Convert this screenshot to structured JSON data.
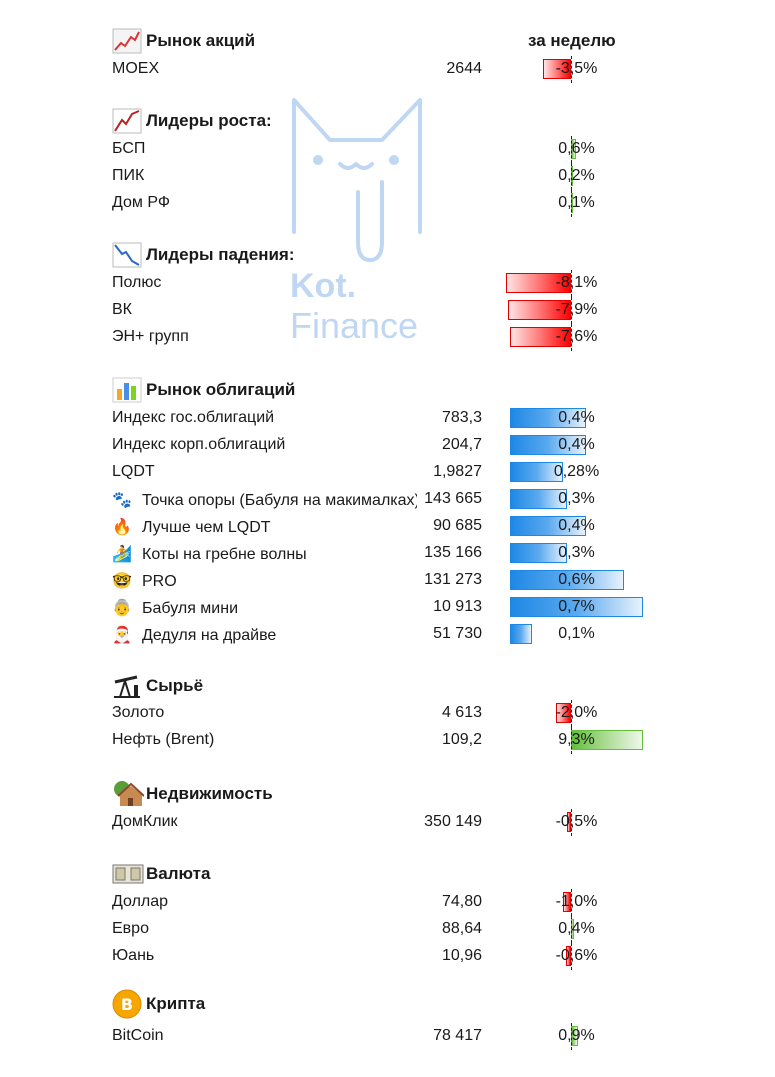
{
  "header": {
    "period_label": "за неделю"
  },
  "sections": {
    "stocks": {
      "title": "Рынок акций",
      "icon": "chart-up-icon",
      "rows": [
        {
          "name": "MOEX",
          "value": "2644",
          "pct": "-3,5%"
        }
      ]
    },
    "leaders_up": {
      "title": "Лидеры роста:",
      "icon": "trend-up-icon",
      "rows": [
        {
          "name": "БСП",
          "value": "",
          "pct": "0,6%"
        },
        {
          "name": "ПИК",
          "value": "",
          "pct": "0,2%"
        },
        {
          "name": "Дом РФ",
          "value": "",
          "pct": "0,1%"
        }
      ]
    },
    "leaders_down": {
      "title": "Лидеры падения:",
      "icon": "trend-down-icon",
      "rows": [
        {
          "name": "Полюс",
          "value": "",
          "pct": "-8,1%"
        },
        {
          "name": "ВК",
          "value": "",
          "pct": "-7,9%"
        },
        {
          "name": "ЭН+ групп",
          "value": "",
          "pct": "-7,6%"
        }
      ]
    },
    "bonds": {
      "title": "Рынок облигаций",
      "icon": "bar-chart-icon",
      "rows": [
        {
          "name": "Индекс гос.облигаций",
          "value": "783,3",
          "pct": "0,4%"
        },
        {
          "name": "Индекс корп.облигаций",
          "value": "204,7",
          "pct": "0,4%"
        },
        {
          "name": "LQDT",
          "value": "1,9827",
          "pct": "0,28%"
        },
        {
          "name": "Точка опоры (Бабуля на макималках)",
          "emoji": "🐾",
          "value": "143 665",
          "pct": "0,3%"
        },
        {
          "name": "Лучше чем LQDT",
          "emoji": "🔥",
          "value": "90 685",
          "pct": "0,4%"
        },
        {
          "name": "Коты на гребне волны",
          "emoji": "🏄",
          "value": "135 166",
          "pct": "0,3%"
        },
        {
          "name": "PRO",
          "emoji": "🤓",
          "value": "131 273",
          "pct": "0,6%"
        },
        {
          "name": "Бабуля мини",
          "emoji": "👵",
          "value": "10 913",
          "pct": "0,7%"
        },
        {
          "name": "Дедуля на драйве",
          "emoji": "🎅",
          "value": "51 730",
          "pct": "0,1%"
        }
      ]
    },
    "commodities": {
      "title": "Сырьё",
      "icon": "oil-pump-icon",
      "rows": [
        {
          "name": "Золото",
          "value": "4 613",
          "pct": "-2,0%"
        },
        {
          "name": "Нефть (Brent)",
          "value": "109,2",
          "pct": "9,3%"
        }
      ]
    },
    "real_estate": {
      "title": "Недвижимость",
      "icon": "house-icon",
      "rows": [
        {
          "name": "ДомКлик",
          "value": "350 149",
          "pct": "-0,5%"
        }
      ]
    },
    "currency": {
      "title": "Валюта",
      "icon": "banknote-icon",
      "rows": [
        {
          "name": "Доллар",
          "value": "74,80",
          "pct": "-1,0%"
        },
        {
          "name": "Евро",
          "value": "88,64",
          "pct": "0,4%"
        },
        {
          "name": "Юань",
          "value": "10,96",
          "pct": "-0,6%"
        }
      ]
    },
    "crypto": {
      "title": "Крипта",
      "icon": "bitcoin-icon",
      "rows": [
        {
          "name": "BitCoin",
          "value": "78 417",
          "pct": "0,9%"
        }
      ]
    }
  },
  "watermark": {
    "line1": "Kot.",
    "line2": "Finance"
  },
  "colors": {
    "negative": "#ff0000",
    "positive": "#63be3b",
    "bond_bar": "#1e88e5",
    "watermark": "#b9d3f2"
  }
}
